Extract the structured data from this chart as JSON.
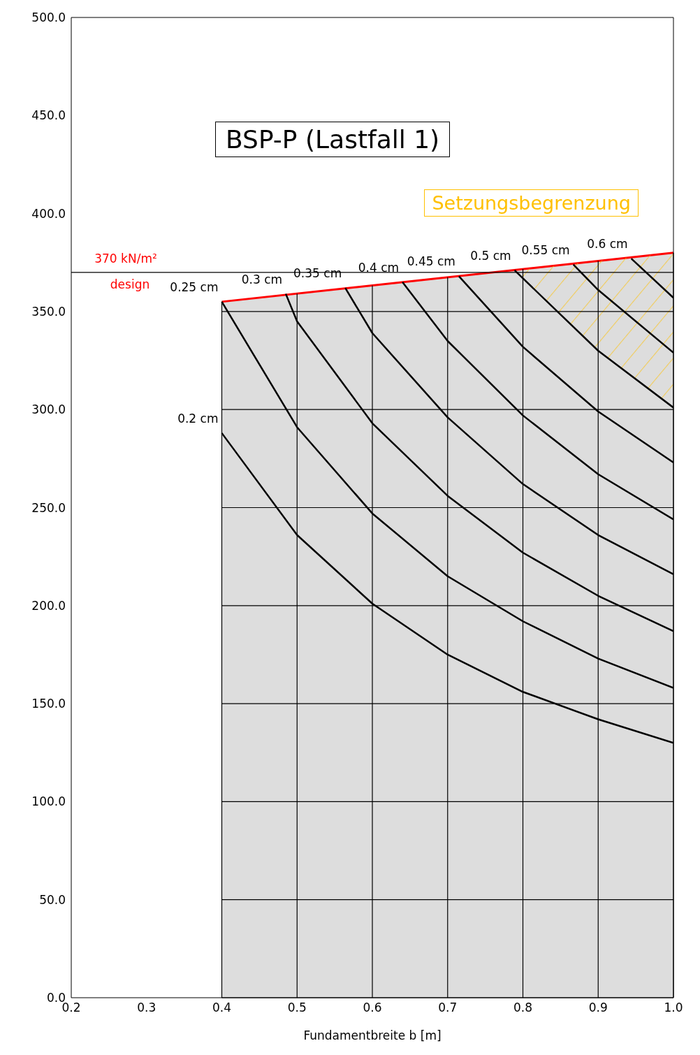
{
  "chart_data": {
    "type": "line",
    "title": "BSP-P (Lastfall 1)",
    "xlabel": "Fundamentbreite b [m]",
    "xlim": [
      0.2,
      1.0
    ],
    "xticks": [
      0.2,
      0.3,
      0.4,
      0.5,
      0.6,
      0.7,
      0.8,
      0.9,
      {
        "value": 1.0,
        "label": "1.0"
      }
    ],
    "ylim": [
      0,
      500
    ],
    "yticks": [
      {
        "value": 0,
        "label": "0.0"
      },
      {
        "value": 50,
        "label": "50.0"
      },
      {
        "value": 100,
        "label": "100.0"
      },
      {
        "value": 150,
        "label": "150.0"
      },
      {
        "value": 200,
        "label": "200.0"
      },
      {
        "value": 250,
        "label": "250.0"
      },
      {
        "value": 300,
        "label": "300.0"
      },
      {
        "value": 350,
        "label": "350.0"
      },
      {
        "value": 400,
        "label": "400.0"
      },
      {
        "value": 450,
        "label": "450.0"
      },
      {
        "value": 500,
        "label": "500.0"
      }
    ],
    "grid": true,
    "marker": "none",
    "line_style": "solid",
    "ref_lines": [
      {
        "axis": "y",
        "value": 370,
        "label": "370 kN/m²",
        "color": "#000000"
      }
    ],
    "annotations": [
      "design",
      "Setzungsbegrenzung"
    ],
    "series": [
      {
        "type": "area",
        "color": "#ff0000",
        "x": [
          0.4,
          1.0
        ],
        "values": [
          355,
          380
        ]
      },
      {
        "name": "0.2 cm",
        "color": "#000000",
        "x": [
          0.4,
          0.5,
          0.6,
          0.7,
          0.8,
          0.9,
          1.0
        ],
        "values": [
          288,
          236,
          201,
          175,
          156,
          142,
          130
        ]
      },
      {
        "name": "0.25 cm",
        "color": "#000000",
        "x": [
          0.4,
          0.5,
          0.6,
          0.7,
          0.8,
          0.9,
          1.0
        ],
        "values": [
          355,
          291,
          247,
          215,
          192,
          173,
          158
        ]
      },
      {
        "name": "0.3 cm",
        "color": "#000000",
        "x": [
          0.485,
          0.5,
          0.6,
          0.7,
          0.8,
          0.9,
          1.0
        ],
        "values": [
          359,
          345,
          293,
          256,
          227,
          205,
          187
        ]
      },
      {
        "name": "0.35 cm",
        "color": "#000000",
        "x": [
          0.564,
          0.6,
          0.7,
          0.8,
          0.9,
          1.0
        ],
        "values": [
          362,
          339,
          296,
          262,
          236,
          216
        ]
      },
      {
        "name": "0.4 cm",
        "color": "#000000",
        "x": [
          0.64,
          0.7,
          0.8,
          0.9,
          1.0
        ],
        "values": [
          365,
          335,
          297,
          267,
          244
        ]
      },
      {
        "name": "0.45 cm",
        "color": "#000000",
        "x": [
          0.715,
          0.8,
          0.9,
          1.0
        ],
        "values": [
          368,
          332,
          299,
          273
        ]
      },
      {
        "name": "0.5 cm",
        "color": "#000000",
        "x": [
          0.789,
          0.9,
          1.0
        ],
        "values": [
          371,
          330,
          301
        ],
        "lower": [
          371,
          330,
          301
        ],
        "upper": [
          371,
          376,
          380
        ]
      },
      {
        "name": "0.55 cm",
        "color": "#000000",
        "x": [
          0.867,
          0.9,
          1.0
        ],
        "values": [
          374,
          361,
          329
        ]
      },
      {
        "name": "0.6 cm",
        "color": "#000000",
        "x": [
          0.944,
          1.0
        ],
        "values": [
          377,
          357
        ]
      }
    ]
  }
}
